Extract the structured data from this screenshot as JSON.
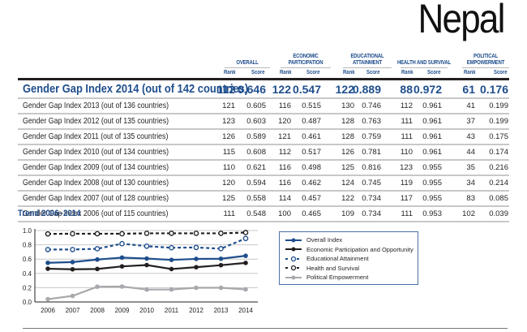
{
  "country": "Nepal",
  "table": {
    "groups": [
      {
        "label": "OVERALL"
      },
      {
        "label": "ECONOMIC PARTICIPATION"
      },
      {
        "label": "EDUCATIONAL ATTAINMENT"
      },
      {
        "label": "HEALTH AND SURVIVAL"
      },
      {
        "label": "POLITICAL EMPOWERMENT"
      }
    ],
    "rank_label": "Rank",
    "score_label": "Score",
    "rows": [
      {
        "label": "Gender Gap Index 2014 (out of 142 countries)",
        "values": [
          "112",
          "0.646",
          "122",
          "0.547",
          "122",
          "0.889",
          "88",
          "0.972",
          "61",
          "0.176"
        ]
      },
      {
        "label": "Gender Gap Index 2013 (out of 136 countries)",
        "values": [
          "121",
          "0.605",
          "116",
          "0.515",
          "130",
          "0.746",
          "112",
          "0.961",
          "41",
          "0.199"
        ]
      },
      {
        "label": "Gender Gap Index 2012 (out of 135 countries)",
        "values": [
          "123",
          "0.603",
          "120",
          "0.487",
          "128",
          "0.763",
          "111",
          "0.961",
          "37",
          "0.199"
        ]
      },
      {
        "label": "Gender Gap Index 2011 (out of 135 countries)",
        "values": [
          "126",
          "0.589",
          "121",
          "0.461",
          "128",
          "0.759",
          "111",
          "0.961",
          "43",
          "0.175"
        ]
      },
      {
        "label": "Gender Gap Index 2010 (out of 134 countries)",
        "values": [
          "115",
          "0.608",
          "112",
          "0.517",
          "126",
          "0.781",
          "110",
          "0.961",
          "44",
          "0.174"
        ]
      },
      {
        "label": "Gender Gap Index 2009 (out of 134 countries)",
        "values": [
          "110",
          "0.621",
          "116",
          "0.498",
          "125",
          "0.816",
          "123",
          "0.955",
          "35",
          "0.216"
        ]
      },
      {
        "label": "Gender Gap Index 2008 (out of 130 countries)",
        "values": [
          "120",
          "0.594",
          "116",
          "0.462",
          "124",
          "0.745",
          "119",
          "0.955",
          "34",
          "0.214"
        ]
      },
      {
        "label": "Gender Gap Index 2007 (out of 128 countries)",
        "values": [
          "125",
          "0.558",
          "114",
          "0.457",
          "122",
          "0.734",
          "117",
          "0.955",
          "83",
          "0.085"
        ]
      },
      {
        "label": "Gender Gap Index 2006 (out of 115 countries)",
        "values": [
          "111",
          "0.548",
          "100",
          "0.465",
          "109",
          "0.734",
          "111",
          "0.953",
          "102",
          "0.039"
        ]
      }
    ]
  },
  "chart_data": {
    "type": "line",
    "title": "Trend 2006–2014",
    "xlabel": "",
    "ylabel": "",
    "x": [
      "2006",
      "2007",
      "2008",
      "2009",
      "2010",
      "2011",
      "2012",
      "2013",
      "2014"
    ],
    "ylim": [
      0,
      1.0
    ],
    "yticks": [
      "0.0",
      "0.2",
      "0.4",
      "0.6",
      "0.8",
      "1.0"
    ],
    "grid": true,
    "legend_position": "right",
    "series": [
      {
        "name": "Overall Index",
        "color": "#1f4e8c",
        "style": "solid",
        "marker": "filled",
        "values": [
          0.548,
          0.558,
          0.594,
          0.621,
          0.608,
          0.589,
          0.603,
          0.605,
          0.646
        ]
      },
      {
        "name": "Economic Participation and Opportunity",
        "color": "#231f20",
        "style": "solid",
        "marker": "filled",
        "values": [
          0.465,
          0.457,
          0.462,
          0.498,
          0.517,
          0.461,
          0.487,
          0.515,
          0.547
        ]
      },
      {
        "name": "Educational Attainment",
        "color": "#1f4e8c",
        "style": "dashed",
        "marker": "open",
        "values": [
          0.734,
          0.734,
          0.745,
          0.816,
          0.781,
          0.759,
          0.763,
          0.746,
          0.889
        ]
      },
      {
        "name": "Health and Survival",
        "color": "#231f20",
        "style": "dashed",
        "marker": "open",
        "values": [
          0.953,
          0.955,
          0.955,
          0.955,
          0.961,
          0.961,
          0.961,
          0.961,
          0.972
        ]
      },
      {
        "name": "Political Empowerment",
        "color": "#a7a9ac",
        "style": "solid",
        "marker": "filled",
        "values": [
          0.039,
          0.085,
          0.214,
          0.216,
          0.174,
          0.175,
          0.199,
          0.199,
          0.176
        ]
      }
    ]
  }
}
